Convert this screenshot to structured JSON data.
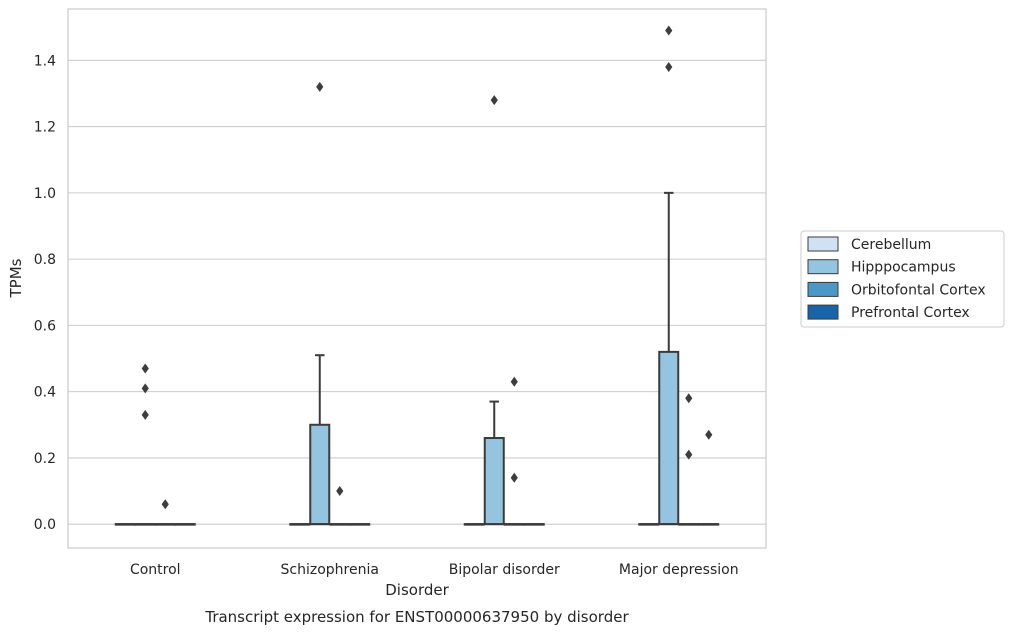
{
  "chart_data": {
    "type": "box",
    "title": "",
    "caption": "Transcript expression for ENST00000637950 by disorder",
    "xlabel": "Disorder",
    "ylabel": "TPMs",
    "ylim": [
      -0.072,
      1.555
    ],
    "yticks": [
      0.0,
      0.2,
      0.4,
      0.6,
      0.8,
      1.0,
      1.2,
      1.4
    ],
    "ytick_labels": [
      "0.0",
      "0.2",
      "0.4",
      "0.6",
      "0.8",
      "1.0",
      "1.2",
      "1.4"
    ],
    "grid": true,
    "legend_position": "right",
    "categories": [
      "Control",
      "Schizophrenia",
      "Bipolar disorder",
      "Major depression"
    ],
    "series": [
      {
        "name": "Cerebellum",
        "color": "#d0e1f2",
        "boxes": [
          {
            "q1": 0,
            "median": 0,
            "q3": 0,
            "whisker_low": 0,
            "whisker_high": 0,
            "outliers": []
          },
          {
            "q1": 0,
            "median": 0,
            "q3": 0,
            "whisker_low": 0,
            "whisker_high": 0,
            "outliers": []
          },
          {
            "q1": 0,
            "median": 0,
            "q3": 0,
            "whisker_low": 0,
            "whisker_high": 0,
            "outliers": []
          },
          {
            "q1": 0,
            "median": 0,
            "q3": 0,
            "whisker_low": 0,
            "whisker_high": 0,
            "outliers": []
          }
        ]
      },
      {
        "name": "Hipppocampus",
        "color": "#94c4df",
        "boxes": [
          {
            "q1": 0,
            "median": 0,
            "q3": 0,
            "whisker_low": 0,
            "whisker_high": 0,
            "outliers": [
              0.33,
              0.41,
              0.47
            ]
          },
          {
            "q1": 0,
            "median": 0,
            "q3": 0.3,
            "whisker_low": 0,
            "whisker_high": 0.51,
            "outliers": [
              1.32
            ]
          },
          {
            "q1": 0,
            "median": 0,
            "q3": 0.26,
            "whisker_low": 0,
            "whisker_high": 0.37,
            "outliers": [
              1.28
            ]
          },
          {
            "q1": 0,
            "median": 0,
            "q3": 0.52,
            "whisker_low": 0,
            "whisker_high": 1.0,
            "outliers": [
              1.38,
              1.49
            ]
          }
        ]
      },
      {
        "name": "Orbitofontal Cortex",
        "color": "#4a98c9",
        "boxes": [
          {
            "q1": 0,
            "median": 0,
            "q3": 0,
            "whisker_low": 0,
            "whisker_high": 0,
            "outliers": [
              0.06
            ]
          },
          {
            "q1": 0,
            "median": 0,
            "q3": 0,
            "whisker_low": 0,
            "whisker_high": 0,
            "outliers": [
              0.1
            ]
          },
          {
            "q1": 0,
            "median": 0,
            "q3": 0,
            "whisker_low": 0,
            "whisker_high": 0,
            "outliers": [
              0.14,
              0.43
            ]
          },
          {
            "q1": 0,
            "median": 0,
            "q3": 0,
            "whisker_low": 0,
            "whisker_high": 0,
            "outliers": [
              0.21,
              0.38
            ]
          }
        ]
      },
      {
        "name": "Prefrontal Cortex",
        "color": "#1764ab",
        "boxes": [
          {
            "q1": 0,
            "median": 0,
            "q3": 0,
            "whisker_low": 0,
            "whisker_high": 0,
            "outliers": []
          },
          {
            "q1": 0,
            "median": 0,
            "q3": 0,
            "whisker_low": 0,
            "whisker_high": 0,
            "outliers": []
          },
          {
            "q1": 0,
            "median": 0,
            "q3": 0,
            "whisker_low": 0,
            "whisker_high": 0,
            "outliers": []
          },
          {
            "q1": 0,
            "median": 0,
            "q3": 0,
            "whisker_low": 0,
            "whisker_high": 0,
            "outliers": [
              0.27
            ]
          }
        ]
      }
    ]
  }
}
